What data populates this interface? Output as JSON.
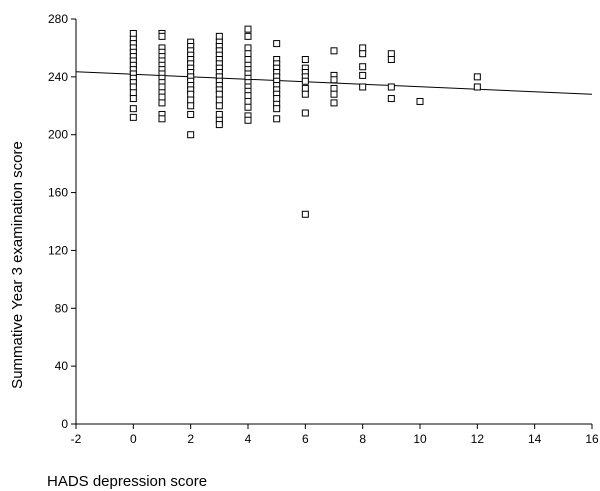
{
  "chart_data": {
    "type": "scatter",
    "title": "",
    "xlabel": "HADS depression score",
    "ylabel": "Summative Year 3 examination score",
    "xlim": [
      -2,
      16
    ],
    "ylim": [
      0,
      280
    ],
    "xticks": [
      -2,
      0,
      2,
      4,
      6,
      8,
      10,
      12,
      14,
      16
    ],
    "yticks": [
      0,
      40,
      80,
      120,
      160,
      200,
      240,
      280
    ],
    "grid": false,
    "legend": "none",
    "marker": "open-square",
    "points": [
      {
        "x": 0,
        "y": 270
      },
      {
        "x": 0,
        "y": 266
      },
      {
        "x": 0,
        "y": 263
      },
      {
        "x": 0,
        "y": 260
      },
      {
        "x": 0,
        "y": 257
      },
      {
        "x": 0,
        "y": 254
      },
      {
        "x": 0,
        "y": 251
      },
      {
        "x": 0,
        "y": 248
      },
      {
        "x": 0,
        "y": 245
      },
      {
        "x": 0,
        "y": 242
      },
      {
        "x": 0,
        "y": 239
      },
      {
        "x": 0,
        "y": 236
      },
      {
        "x": 0,
        "y": 233
      },
      {
        "x": 0,
        "y": 229
      },
      {
        "x": 0,
        "y": 225
      },
      {
        "x": 0,
        "y": 218
      },
      {
        "x": 0,
        "y": 212
      },
      {
        "x": 1,
        "y": 270
      },
      {
        "x": 1,
        "y": 268
      },
      {
        "x": 1,
        "y": 260
      },
      {
        "x": 1,
        "y": 257
      },
      {
        "x": 1,
        "y": 254
      },
      {
        "x": 1,
        "y": 251
      },
      {
        "x": 1,
        "y": 248
      },
      {
        "x": 1,
        "y": 245
      },
      {
        "x": 1,
        "y": 242
      },
      {
        "x": 1,
        "y": 239
      },
      {
        "x": 1,
        "y": 236
      },
      {
        "x": 1,
        "y": 233
      },
      {
        "x": 1,
        "y": 229
      },
      {
        "x": 1,
        "y": 226
      },
      {
        "x": 1,
        "y": 222
      },
      {
        "x": 1,
        "y": 214
      },
      {
        "x": 1,
        "y": 211
      },
      {
        "x": 2,
        "y": 264
      },
      {
        "x": 2,
        "y": 261
      },
      {
        "x": 2,
        "y": 258
      },
      {
        "x": 2,
        "y": 255
      },
      {
        "x": 2,
        "y": 252
      },
      {
        "x": 2,
        "y": 249
      },
      {
        "x": 2,
        "y": 246
      },
      {
        "x": 2,
        "y": 243
      },
      {
        "x": 2,
        "y": 240
      },
      {
        "x": 2,
        "y": 237
      },
      {
        "x": 2,
        "y": 234
      },
      {
        "x": 2,
        "y": 231
      },
      {
        "x": 2,
        "y": 228
      },
      {
        "x": 2,
        "y": 224
      },
      {
        "x": 2,
        "y": 220
      },
      {
        "x": 2,
        "y": 214
      },
      {
        "x": 2,
        "y": 200
      },
      {
        "x": 3,
        "y": 268
      },
      {
        "x": 3,
        "y": 264
      },
      {
        "x": 3,
        "y": 261
      },
      {
        "x": 3,
        "y": 258
      },
      {
        "x": 3,
        "y": 255
      },
      {
        "x": 3,
        "y": 252
      },
      {
        "x": 3,
        "y": 249
      },
      {
        "x": 3,
        "y": 246
      },
      {
        "x": 3,
        "y": 243
      },
      {
        "x": 3,
        "y": 240
      },
      {
        "x": 3,
        "y": 237
      },
      {
        "x": 3,
        "y": 234
      },
      {
        "x": 3,
        "y": 231
      },
      {
        "x": 3,
        "y": 228
      },
      {
        "x": 3,
        "y": 224
      },
      {
        "x": 3,
        "y": 220
      },
      {
        "x": 3,
        "y": 214
      },
      {
        "x": 3,
        "y": 210
      },
      {
        "x": 3,
        "y": 207
      },
      {
        "x": 4,
        "y": 273
      },
      {
        "x": 4,
        "y": 268
      },
      {
        "x": 4,
        "y": 260
      },
      {
        "x": 4,
        "y": 256
      },
      {
        "x": 4,
        "y": 252
      },
      {
        "x": 4,
        "y": 248
      },
      {
        "x": 4,
        "y": 245
      },
      {
        "x": 4,
        "y": 242
      },
      {
        "x": 4,
        "y": 239
      },
      {
        "x": 4,
        "y": 236
      },
      {
        "x": 4,
        "y": 233
      },
      {
        "x": 4,
        "y": 230
      },
      {
        "x": 4,
        "y": 227
      },
      {
        "x": 4,
        "y": 223
      },
      {
        "x": 4,
        "y": 219
      },
      {
        "x": 4,
        "y": 213
      },
      {
        "x": 4,
        "y": 210
      },
      {
        "x": 5,
        "y": 263
      },
      {
        "x": 5,
        "y": 252
      },
      {
        "x": 5,
        "y": 249
      },
      {
        "x": 5,
        "y": 246
      },
      {
        "x": 5,
        "y": 243
      },
      {
        "x": 5,
        "y": 240
      },
      {
        "x": 5,
        "y": 237
      },
      {
        "x": 5,
        "y": 234
      },
      {
        "x": 5,
        "y": 231
      },
      {
        "x": 5,
        "y": 228
      },
      {
        "x": 5,
        "y": 225
      },
      {
        "x": 5,
        "y": 221
      },
      {
        "x": 5,
        "y": 218
      },
      {
        "x": 5,
        "y": 211
      },
      {
        "x": 6,
        "y": 252
      },
      {
        "x": 6,
        "y": 246
      },
      {
        "x": 6,
        "y": 243
      },
      {
        "x": 6,
        "y": 240
      },
      {
        "x": 6,
        "y": 237
      },
      {
        "x": 6,
        "y": 232
      },
      {
        "x": 6,
        "y": 228
      },
      {
        "x": 6,
        "y": 215
      },
      {
        "x": 6,
        "y": 145
      },
      {
        "x": 7,
        "y": 258
      },
      {
        "x": 7,
        "y": 241
      },
      {
        "x": 7,
        "y": 238
      },
      {
        "x": 7,
        "y": 232
      },
      {
        "x": 7,
        "y": 228
      },
      {
        "x": 7,
        "y": 222
      },
      {
        "x": 8,
        "y": 260
      },
      {
        "x": 8,
        "y": 256
      },
      {
        "x": 8,
        "y": 247
      },
      {
        "x": 8,
        "y": 241
      },
      {
        "x": 8,
        "y": 233
      },
      {
        "x": 9,
        "y": 256
      },
      {
        "x": 9,
        "y": 252
      },
      {
        "x": 9,
        "y": 233
      },
      {
        "x": 9,
        "y": 225
      },
      {
        "x": 10,
        "y": 223
      },
      {
        "x": 12,
        "y": 240
      },
      {
        "x": 12,
        "y": 233
      }
    ],
    "trendline": {
      "x": [
        -2,
        16
      ],
      "y": [
        243.5,
        228.0
      ]
    }
  }
}
